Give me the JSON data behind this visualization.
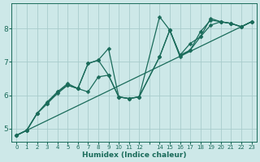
{
  "xlabel": "Humidex (Indice chaleur)",
  "ylabel": "",
  "bg_color": "#cde8e8",
  "grid_color": "#a8cccc",
  "line_color": "#1a6b5a",
  "xlim": [
    -0.5,
    23.5
  ],
  "ylim": [
    4.6,
    8.75
  ],
  "xtick_labels": [
    "0",
    "1",
    "2",
    "3",
    "4",
    "5",
    "6",
    "7",
    "8",
    "9",
    "10",
    "11",
    "12",
    "",
    "14",
    "15",
    "16",
    "17",
    "18",
    "19",
    "20",
    "21",
    "22",
    "23"
  ],
  "xtick_pos": [
    0,
    1,
    2,
    3,
    4,
    5,
    6,
    7,
    8,
    9,
    10,
    11,
    12,
    13,
    14,
    15,
    16,
    17,
    18,
    19,
    20,
    21,
    22,
    23
  ],
  "yticks": [
    5,
    6,
    7,
    8
  ],
  "lines": [
    {
      "x": [
        0,
        23
      ],
      "y": [
        4.8,
        8.2
      ],
      "marker": false,
      "markersize": 0,
      "linewidth": 0.9
    },
    {
      "x": [
        0,
        1,
        2,
        3,
        4,
        5,
        6,
        7,
        8,
        9,
        10,
        11,
        12,
        14,
        15,
        16,
        17,
        18,
        19,
        20,
        21,
        22,
        23
      ],
      "y": [
        4.8,
        4.95,
        5.45,
        5.75,
        6.05,
        6.3,
        6.2,
        6.1,
        6.55,
        6.6,
        5.95,
        5.9,
        5.95,
        7.15,
        7.95,
        7.2,
        7.55,
        7.75,
        8.1,
        8.2,
        8.15,
        8.05,
        8.2
      ],
      "marker": true,
      "markersize": 2.5,
      "linewidth": 0.9
    },
    {
      "x": [
        0,
        1,
        2,
        3,
        4,
        5,
        6,
        7,
        8,
        9,
        10,
        11,
        12,
        14,
        15,
        16,
        17,
        18,
        19,
        20,
        21,
        22,
        23
      ],
      "y": [
        4.8,
        4.95,
        5.45,
        5.8,
        6.1,
        6.35,
        6.2,
        6.95,
        7.05,
        6.6,
        5.95,
        5.9,
        5.95,
        8.35,
        7.95,
        7.15,
        7.35,
        7.9,
        8.25,
        8.2,
        8.15,
        8.05,
        8.2
      ],
      "marker": true,
      "markersize": 2.5,
      "linewidth": 0.9
    },
    {
      "x": [
        0,
        1,
        2,
        3,
        4,
        5,
        6,
        7,
        8,
        9,
        10,
        11,
        12,
        14,
        15,
        16,
        17,
        18,
        19,
        20,
        21,
        22,
        23
      ],
      "y": [
        4.8,
        4.95,
        5.45,
        5.75,
        6.1,
        6.3,
        6.2,
        6.95,
        7.05,
        7.4,
        5.95,
        5.9,
        5.95,
        7.15,
        7.95,
        7.2,
        7.35,
        7.75,
        8.3,
        8.2,
        8.15,
        8.05,
        8.2
      ],
      "marker": true,
      "markersize": 2.5,
      "linewidth": 0.9
    }
  ]
}
